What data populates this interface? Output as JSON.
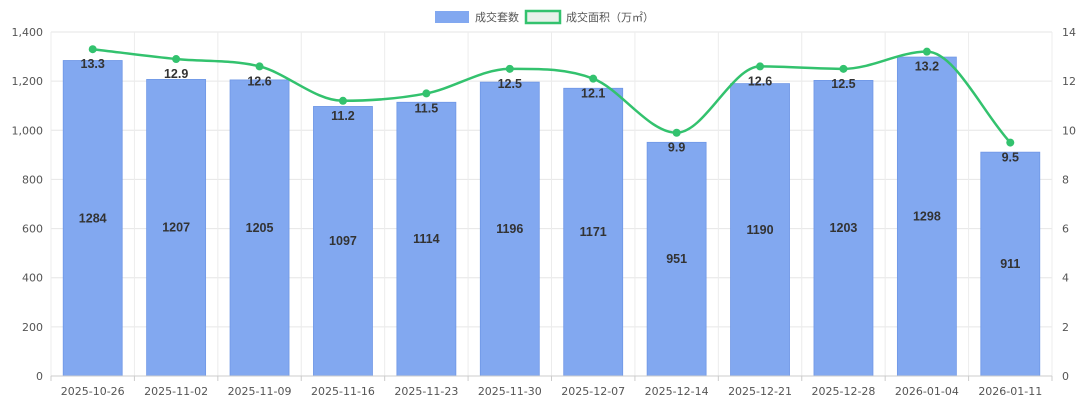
{
  "chart_data": {
    "type": "bar",
    "categories": [
      "2025-10-26",
      "2025-11-02",
      "2025-11-09",
      "2025-11-16",
      "2025-11-23",
      "2025-11-30",
      "2025-12-07",
      "2025-12-14",
      "2025-12-21",
      "2025-12-28",
      "2026-01-04",
      "2026-01-11"
    ],
    "series": [
      {
        "name": "成交套数",
        "type": "bar",
        "axis": "left",
        "color": "#82a8f0",
        "values": [
          1284,
          1207,
          1205,
          1097,
          1114,
          1196,
          1171,
          951,
          1190,
          1203,
          1298,
          911
        ]
      },
      {
        "name": "成交面积（万㎡）",
        "type": "line",
        "axis": "right",
        "color": "#33c26e",
        "values": [
          13.3,
          12.9,
          12.6,
          11.2,
          11.5,
          12.5,
          12.1,
          9.9,
          12.6,
          12.5,
          13.2,
          9.5
        ]
      }
    ],
    "y_left": {
      "min": 0,
      "max": 1400,
      "ticks": [
        "0",
        "200",
        "400",
        "600",
        "800",
        "1,000",
        "1,200",
        "1,400"
      ]
    },
    "y_right": {
      "min": 0,
      "max": 14,
      "ticks": [
        "0",
        "2",
        "4",
        "6",
        "8",
        "10",
        "12",
        "14"
      ]
    },
    "grid": true,
    "legend": "top-center",
    "title": "",
    "xlabel": "",
    "ylabel": ""
  }
}
